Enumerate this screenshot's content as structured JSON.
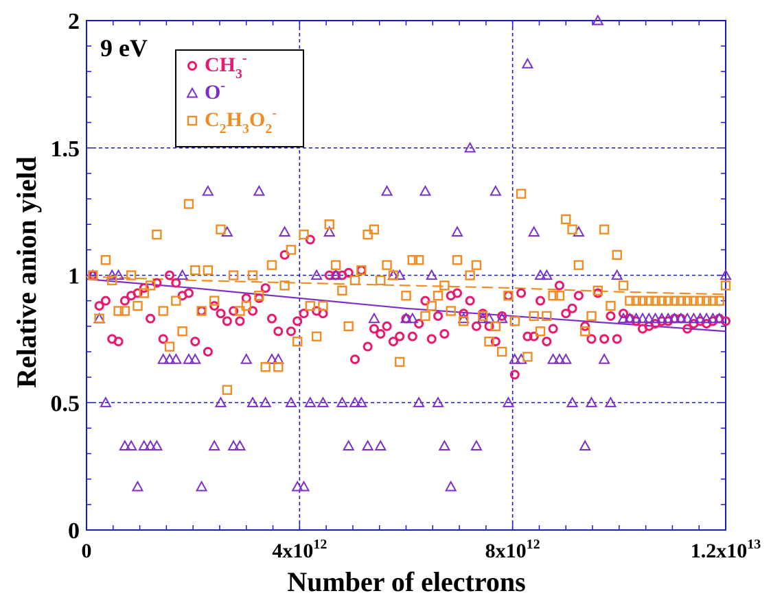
{
  "chart_data": {
    "type": "scatter",
    "title": "",
    "xlabel": "Number of electrons",
    "ylabel": "Relative anion yield",
    "annotation": "9 eV",
    "xlim": [
      0,
      12000000000000.0
    ],
    "ylim": [
      0,
      2
    ],
    "x_ticks": [
      {
        "value": 0,
        "base": "0",
        "exp": ""
      },
      {
        "value": 4000000000000.0,
        "base": "4x10",
        "exp": "12"
      },
      {
        "value": 8000000000000.0,
        "base": "8x10",
        "exp": "12"
      },
      {
        "value": 12000000000000.0,
        "base": "1.2x10",
        "exp": "13"
      }
    ],
    "y_ticks": [
      {
        "value": 0,
        "label": "0"
      },
      {
        "value": 0.5,
        "label": "0.5"
      },
      {
        "value": 1,
        "label": "1"
      },
      {
        "value": 1.5,
        "label": "1.5"
      },
      {
        "value": 2,
        "label": "2"
      }
    ],
    "grid": true,
    "legend_position": "top-left",
    "colors": {
      "grid": "#1a1acc",
      "axis": "#1a1acc",
      "text": "#000000"
    },
    "series": [
      {
        "name": "CH3-",
        "legend_parts": [
          {
            "t": "CH",
            "s": "n"
          },
          {
            "t": "3",
            "s": "sub"
          },
          {
            "t": "-",
            "s": "sup"
          }
        ],
        "marker": "circle",
        "color": "#e8196e",
        "x": [
          120000000000.0,
          240000000000.0,
          360000000000.0,
          480000000000.0,
          600000000000.0,
          720000000000.0,
          840000000000.0,
          960000000000.0,
          1080000000000.0,
          1200000000000.0,
          1320000000000.0,
          1440000000000.0,
          1560000000000.0,
          1680000000000.0,
          1800000000000.0,
          1920000000000.0,
          2040000000000.0,
          2160000000000.0,
          2280000000000.0,
          2400000000000.0,
          2520000000000.0,
          2640000000000.0,
          2760000000000.0,
          2880000000000.0,
          3000000000000.0,
          3120000000000.0,
          3240000000000.0,
          3360000000000.0,
          3480000000000.0,
          3600000000000.0,
          3720000000000.0,
          3840000000000.0,
          3960000000000.0,
          4080000000000.0,
          4200000000000.0,
          4320000000000.0,
          4440000000000.0,
          4560000000000.0,
          4680000000000.0,
          4800000000000.0,
          4920000000000.0,
          5040000000000.0,
          5160000000000.0,
          5280000000000.0,
          5400000000000.0,
          5520000000000.0,
          5640000000000.0,
          5760000000000.0,
          5880000000000.0,
          6000000000000.0,
          6120000000000.0,
          6240000000000.0,
          6360000000000.0,
          6480000000000.0,
          6600000000000.0,
          6720000000000.0,
          6840000000000.0,
          6960000000000.0,
          7080000000000.0,
          7200000000000.0,
          7320000000000.0,
          7440000000000.0,
          7560000000000.0,
          7680000000000.0,
          7800000000000.0,
          7920000000000.0,
          8040000000000.0,
          8160000000000.0,
          8280000000000.0,
          8400000000000.0,
          8520000000000.0,
          8640000000000.0,
          8760000000000.0,
          8880000000000.0,
          9000000000000.0,
          9120000000000.0,
          9240000000000.0,
          9360000000000.0,
          9480000000000.0,
          9600000000000.0,
          9720000000000.0,
          9840000000000.0,
          9960000000000.0,
          10080000000000.0,
          10200000000000.0,
          10320000000000.0,
          10440000000000.0,
          10560000000000.0,
          10680000000000.0,
          10800000000000.0,
          10920000000000.0,
          11040000000000.0,
          11160000000000.0,
          11280000000000.0,
          11400000000000.0,
          11520000000000.0,
          11640000000000.0,
          11760000000000.0,
          11880000000000.0,
          12000000000000.0
        ],
        "y": [
          1.0,
          0.88,
          0.9,
          0.75,
          0.74,
          0.9,
          0.92,
          0.93,
          0.95,
          0.83,
          0.97,
          0.75,
          1.0,
          0.97,
          0.92,
          0.93,
          0.74,
          0.86,
          0.7,
          0.88,
          0.85,
          0.82,
          0.86,
          0.82,
          0.91,
          0.86,
          0.91,
          0.95,
          0.83,
          0.78,
          1.08,
          0.78,
          0.82,
          0.85,
          1.14,
          0.86,
          0.85,
          1.0,
          1.0,
          1.0,
          1.01,
          0.67,
          1.02,
          0.72,
          0.79,
          0.77,
          0.8,
          0.74,
          0.76,
          0.83,
          0.76,
          0.81,
          0.9,
          0.75,
          0.84,
          0.77,
          0.92,
          0.93,
          0.85,
          0.9,
          0.8,
          0.85,
          0.8,
          0.74,
          0.84,
          0.92,
          0.61,
          0.93,
          0.76,
          0.76,
          0.9,
          0.74,
          0.79,
          0.96,
          0.85,
          0.87,
          0.92,
          0.8,
          0.75,
          0.93,
          0.75,
          0.84,
          0.75,
          0.85,
          0.83,
          0.82,
          0.79,
          0.8,
          0.81,
          0.82,
          0.82,
          0.83,
          0.83,
          0.79,
          0.81,
          0.82,
          0.81,
          0.82,
          0.83,
          0.82
        ],
        "fit": {
          "style": "none",
          "x": [],
          "y": []
        }
      },
      {
        "name": "O-",
        "legend_parts": [
          {
            "t": "O",
            "s": "n"
          },
          {
            "t": "-",
            "s": "sup"
          }
        ],
        "marker": "triangle",
        "color": "#7b2fc9",
        "x": [
          120000000000.0,
          240000000000.0,
          360000000000.0,
          480000000000.0,
          600000000000.0,
          720000000000.0,
          840000000000.0,
          960000000000.0,
          1080000000000.0,
          1200000000000.0,
          1320000000000.0,
          1440000000000.0,
          1560000000000.0,
          1680000000000.0,
          1800000000000.0,
          1920000000000.0,
          2040000000000.0,
          2160000000000.0,
          2280000000000.0,
          2400000000000.0,
          2520000000000.0,
          2640000000000.0,
          2760000000000.0,
          2880000000000.0,
          3000000000000.0,
          3120000000000.0,
          3240000000000.0,
          3360000000000.0,
          3480000000000.0,
          3600000000000.0,
          3720000000000.0,
          3840000000000.0,
          3960000000000.0,
          4080000000000.0,
          4200000000000.0,
          4320000000000.0,
          4440000000000.0,
          4560000000000.0,
          4680000000000.0,
          4800000000000.0,
          4920000000000.0,
          5040000000000.0,
          5160000000000.0,
          5280000000000.0,
          5400000000000.0,
          5520000000000.0,
          5640000000000.0,
          5760000000000.0,
          5880000000000.0,
          6000000000000.0,
          6120000000000.0,
          6240000000000.0,
          6360000000000.0,
          6480000000000.0,
          6600000000000.0,
          6720000000000.0,
          6840000000000.0,
          6960000000000.0,
          7080000000000.0,
          7200000000000.0,
          7320000000000.0,
          7440000000000.0,
          7560000000000.0,
          7680000000000.0,
          7800000000000.0,
          7920000000000.0,
          8040000000000.0,
          8160000000000.0,
          8280000000000.0,
          8400000000000.0,
          8520000000000.0,
          8640000000000.0,
          8760000000000.0,
          8880000000000.0,
          9000000000000.0,
          9120000000000.0,
          9240000000000.0,
          9360000000000.0,
          9480000000000.0,
          9600000000000.0,
          9720000000000.0,
          9840000000000.0,
          9960000000000.0,
          10080000000000.0,
          10200000000000.0,
          10320000000000.0,
          10440000000000.0,
          10560000000000.0,
          10680000000000.0,
          10800000000000.0,
          10920000000000.0,
          11040000000000.0,
          11160000000000.0,
          11280000000000.0,
          11400000000000.0,
          11520000000000.0,
          11640000000000.0,
          11760000000000.0,
          11880000000000.0,
          12000000000000.0
        ],
        "y": [
          1.0,
          0.83,
          0.5,
          1.0,
          1.0,
          0.33,
          0.33,
          0.17,
          0.33,
          0.33,
          0.33,
          0.67,
          0.67,
          0.67,
          1.0,
          0.67,
          0.67,
          0.17,
          1.33,
          0.33,
          0.5,
          1.17,
          0.33,
          0.33,
          0.67,
          0.5,
          1.33,
          0.5,
          0.67,
          0.67,
          1.17,
          0.5,
          0.17,
          0.17,
          0.5,
          1.0,
          0.5,
          1.17,
          1.0,
          0.5,
          0.33,
          0.5,
          0.5,
          0.33,
          0.83,
          0.33,
          1.33,
          1.0,
          1.0,
          0.83,
          0.83,
          0.5,
          1.33,
          1.0,
          0.5,
          0.33,
          0.17,
          1.17,
          0.83,
          1.5,
          0.33,
          0.83,
          0.83,
          1.33,
          0.83,
          0.5,
          0.67,
          0.67,
          1.83,
          1.17,
          1.0,
          1.0,
          0.67,
          0.67,
          0.67,
          0.5,
          1.17,
          0.33,
          0.5,
          2.0,
          0.67,
          0.5,
          1.0,
          0.83,
          0.83,
          0.83,
          0.83,
          0.83,
          0.83,
          0.83,
          0.83,
          0.83,
          0.83,
          0.83,
          0.83,
          0.83,
          0.83,
          0.83,
          0.83,
          1.0
        ],
        "fit": {
          "style": "solid",
          "x": [
            0,
            2000000000000.0,
            4000000000000.0,
            6000000000000.0,
            8000000000000.0,
            10000000000000.0,
            12000000000000.0
          ],
          "y": [
            0.985,
            0.95,
            0.91,
            0.87,
            0.84,
            0.81,
            0.78
          ]
        }
      },
      {
        "name": "C2H3O2-",
        "legend_parts": [
          {
            "t": "C",
            "s": "n"
          },
          {
            "t": "2",
            "s": "sub"
          },
          {
            "t": "H",
            "s": "n"
          },
          {
            "t": "3",
            "s": "sub"
          },
          {
            "t": "O",
            "s": "n"
          },
          {
            "t": "2",
            "s": "sub"
          },
          {
            "t": "-",
            "s": "sup"
          }
        ],
        "marker": "square",
        "color": "#f08c24",
        "x": [
          120000000000.0,
          240000000000.0,
          360000000000.0,
          480000000000.0,
          600000000000.0,
          720000000000.0,
          840000000000.0,
          960000000000.0,
          1080000000000.0,
          1200000000000.0,
          1320000000000.0,
          1440000000000.0,
          1560000000000.0,
          1680000000000.0,
          1800000000000.0,
          1920000000000.0,
          2040000000000.0,
          2160000000000.0,
          2280000000000.0,
          2400000000000.0,
          2520000000000.0,
          2640000000000.0,
          2760000000000.0,
          2880000000000.0,
          3000000000000.0,
          3120000000000.0,
          3240000000000.0,
          3360000000000.0,
          3480000000000.0,
          3600000000000.0,
          3720000000000.0,
          3840000000000.0,
          3960000000000.0,
          4080000000000.0,
          4200000000000.0,
          4320000000000.0,
          4440000000000.0,
          4560000000000.0,
          4680000000000.0,
          4800000000000.0,
          4920000000000.0,
          5040000000000.0,
          5160000000000.0,
          5280000000000.0,
          5400000000000.0,
          5520000000000.0,
          5640000000000.0,
          5760000000000.0,
          5880000000000.0,
          6000000000000.0,
          6120000000000.0,
          6240000000000.0,
          6360000000000.0,
          6480000000000.0,
          6600000000000.0,
          6720000000000.0,
          6840000000000.0,
          6960000000000.0,
          7080000000000.0,
          7200000000000.0,
          7320000000000.0,
          7440000000000.0,
          7560000000000.0,
          7680000000000.0,
          7800000000000.0,
          7920000000000.0,
          8040000000000.0,
          8160000000000.0,
          8280000000000.0,
          8400000000000.0,
          8520000000000.0,
          8640000000000.0,
          8760000000000.0,
          8880000000000.0,
          9000000000000.0,
          9120000000000.0,
          9240000000000.0,
          9360000000000.0,
          9480000000000.0,
          9600000000000.0,
          9720000000000.0,
          9840000000000.0,
          9960000000000.0,
          10080000000000.0,
          10200000000000.0,
          10320000000000.0,
          10440000000000.0,
          10560000000000.0,
          10680000000000.0,
          10800000000000.0,
          10920000000000.0,
          11040000000000.0,
          11160000000000.0,
          11280000000000.0,
          11400000000000.0,
          11520000000000.0,
          11640000000000.0,
          11760000000000.0,
          11880000000000.0,
          12000000000000.0
        ],
        "y": [
          1.0,
          0.83,
          1.06,
          0.98,
          0.86,
          0.86,
          1.0,
          0.88,
          0.93,
          0.96,
          1.16,
          0.86,
          0.72,
          0.9,
          0.78,
          1.28,
          1.02,
          0.86,
          1.02,
          0.9,
          1.18,
          0.55,
          1.0,
          0.86,
          0.88,
          1.0,
          0.92,
          0.64,
          1.04,
          0.64,
          0.96,
          1.1,
          0.74,
          1.16,
          0.88,
          0.76,
          0.88,
          1.2,
          1.04,
          0.94,
          0.8,
          0.98,
          1.02,
          1.16,
          1.18,
          0.98,
          1.04,
          1.0,
          0.66,
          0.92,
          1.06,
          1.06,
          0.84,
          0.88,
          0.92,
          0.96,
          0.86,
          1.06,
          0.82,
          1.0,
          1.04,
          0.84,
          0.74,
          0.8,
          0.7,
          0.92,
          0.82,
          1.32,
          0.68,
          0.84,
          0.78,
          0.84,
          0.92,
          0.92,
          1.22,
          1.18,
          1.04,
          0.78,
          0.84,
          0.94,
          1.18,
          0.88,
          1.08,
          0.96,
          0.9,
          0.9,
          0.9,
          0.9,
          0.9,
          0.9,
          0.9,
          0.9,
          0.9,
          0.9,
          0.9,
          0.9,
          0.9,
          0.9,
          0.9,
          0.96
        ],
        "fit": {
          "style": "dashed",
          "x": [
            0,
            2000000000000.0,
            4000000000000.0,
            6000000000000.0,
            8000000000000.0,
            10000000000000.0,
            12000000000000.0
          ],
          "y": [
            0.995,
            0.98,
            0.97,
            0.96,
            0.95,
            0.935,
            0.925
          ]
        }
      }
    ]
  }
}
